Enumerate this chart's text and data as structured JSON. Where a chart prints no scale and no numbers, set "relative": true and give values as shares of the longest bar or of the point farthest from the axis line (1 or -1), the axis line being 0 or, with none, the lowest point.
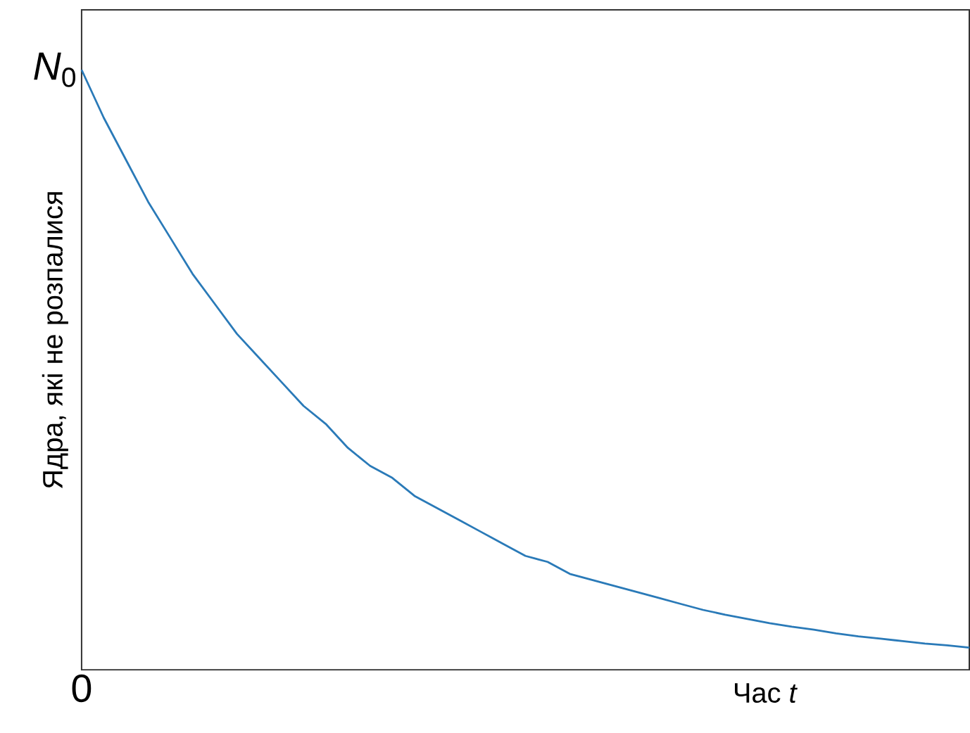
{
  "chart_data": {
    "type": "line",
    "relative": true,
    "xlabel": "Час *t*",
    "ylabel": "Ядра, які не розпалися",
    "annotations": [
      "*N*$_{0}$",
      "0"
    ],
    "categories": [
      null,
      null,
      null,
      null,
      null,
      null,
      null,
      null,
      null,
      null,
      null,
      null,
      null,
      null,
      null,
      null,
      null,
      null,
      null,
      null,
      null,
      null,
      null,
      null,
      null,
      null,
      null,
      null,
      null,
      null,
      null,
      null,
      null,
      null,
      null,
      null,
      null,
      null,
      null,
      null,
      null
    ],
    "series": [
      {
        "color": "#2a7ab8",
        "values": [
          1,
          0.92,
          0.85,
          0.78,
          0.72,
          0.66,
          0.61,
          0.56,
          0.52,
          0.48,
          0.44,
          0.41,
          0.37,
          0.34,
          0.32,
          0.29,
          0.27,
          0.25,
          0.23,
          0.21,
          0.19,
          0.18,
          0.16,
          0.15,
          0.14,
          0.13,
          0.12,
          0.11,
          0.1,
          0.092,
          0.085,
          0.078,
          0.072,
          0.067,
          0.061,
          0.056,
          0.052,
          0.048,
          0.044,
          0.041,
          0.037
        ]
      }
    ],
    "marker": "none",
    "line_style": "solid"
  }
}
